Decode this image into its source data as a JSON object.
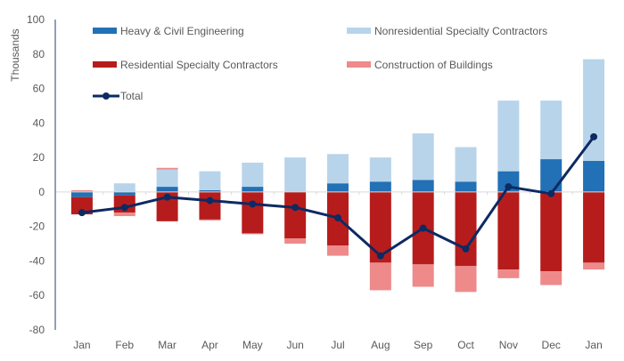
{
  "chart_data": {
    "type": "bar",
    "stacked": true,
    "title": "",
    "xlabel": "",
    "ylabel": "Thousands",
    "ylim": [
      -80,
      100
    ],
    "yticks": [
      100,
      80,
      60,
      40,
      20,
      0,
      -20,
      -40,
      -60,
      -80
    ],
    "categories": [
      "Jan",
      "Feb",
      "Mar",
      "Apr",
      "May",
      "Jun",
      "Jul",
      "Aug",
      "Sep",
      "Oct",
      "Nov",
      "Dec",
      "Jan"
    ],
    "series": [
      {
        "name": "Heavy & Civil Engineering",
        "kind": "bar",
        "color": "#2270b5",
        "values": [
          -3,
          -2,
          3,
          1,
          3,
          0,
          5,
          6,
          7,
          6,
          12,
          19,
          18
        ]
      },
      {
        "name": "Nonresidential Specialty Contractors",
        "kind": "bar",
        "color": "#b8d4ea",
        "values": [
          0,
          5,
          10,
          11,
          14,
          20,
          17,
          14,
          27,
          20,
          41,
          34,
          59
        ]
      },
      {
        "name": "Residential Specialty Contractors",
        "kind": "bar",
        "color": "#b71c1c",
        "values": [
          -10,
          -10,
          -17,
          -16,
          -24,
          -27,
          -31,
          -41,
          -42,
          -43,
          -45,
          -46,
          -41
        ]
      },
      {
        "name": "Construction of Buildings",
        "kind": "bar",
        "color": "#ee8a8a",
        "values": [
          1,
          -2,
          1,
          -0.5,
          -0.5,
          -3,
          -6,
          -16,
          -13,
          -15,
          -5,
          -8,
          -4
        ]
      },
      {
        "name": "Total",
        "kind": "line",
        "color": "#0d2a63",
        "values": [
          -12,
          -9,
          -3,
          -5,
          -7,
          -9,
          -15,
          -37,
          -21,
          -33,
          3,
          -1,
          32
        ]
      }
    ],
    "legend_position": "top",
    "grid": false
  }
}
